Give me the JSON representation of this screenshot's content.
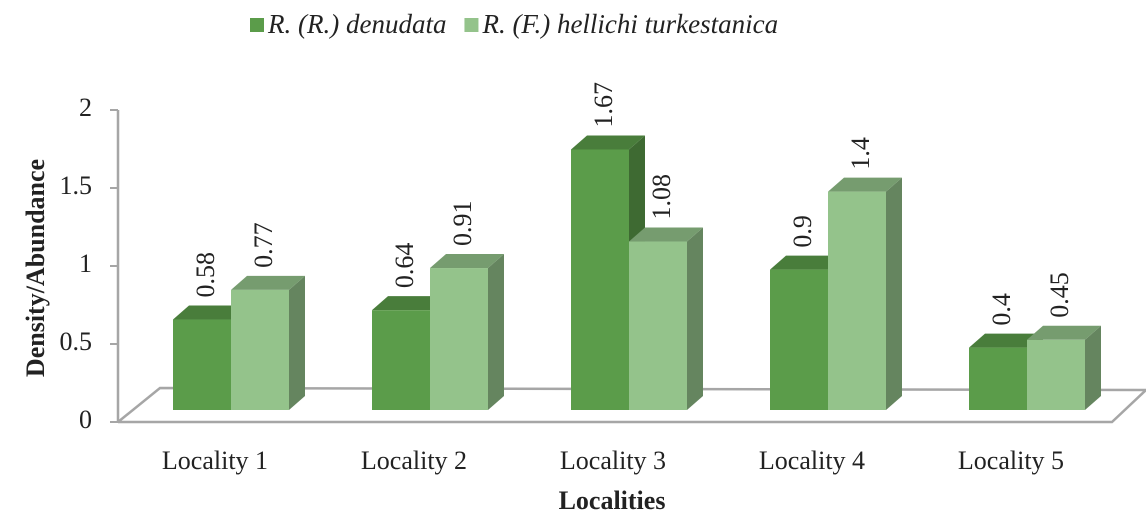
{
  "chart_data": {
    "type": "bar3d",
    "xlabel": "Localities",
    "ylabel": "Density/Abundance",
    "categories": [
      "Locality 1",
      "Locality 2",
      "Locality 3",
      "Locality 4",
      "Locality 5"
    ],
    "series": [
      {
        "name": "R. (R.) denudata",
        "color": "#5b9c4a",
        "values": [
          0.58,
          0.64,
          1.67,
          0.9,
          0.4
        ]
      },
      {
        "name": "R. (F.) hellichi turkestanica",
        "color": "#94c38b",
        "values": [
          0.77,
          0.91,
          1.08,
          1.4,
          0.45
        ]
      }
    ],
    "ylim": [
      0,
      2
    ],
    "yticks": [
      0,
      0.5,
      1,
      1.5,
      2
    ]
  }
}
